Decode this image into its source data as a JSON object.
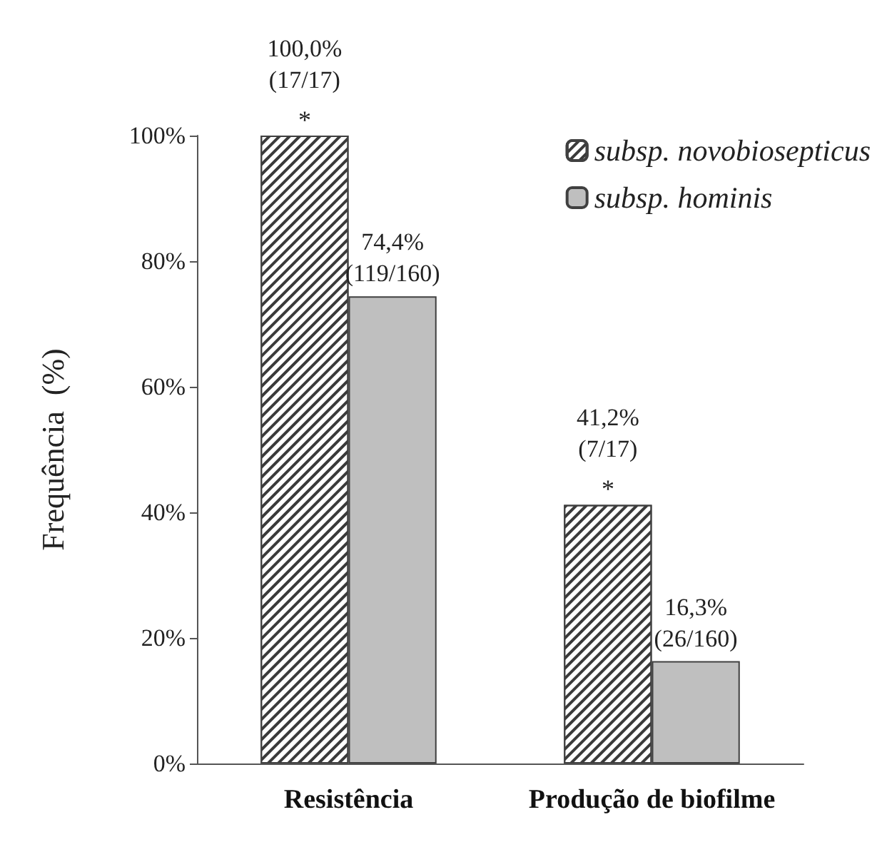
{
  "chart_data": {
    "type": "bar",
    "ylabel": "Frequência  (%)",
    "categories": [
      "Resistência",
      "Produção de biofilme"
    ],
    "series": [
      {
        "name": "subsp. novobiosepticus",
        "color": "#3a3a3a",
        "values": [
          100.0,
          41.2
        ],
        "value_labels": [
          "100,0%\n(17/17)",
          "41,2%\n(7/17)"
        ]
      },
      {
        "name": "subsp. hominis",
        "color": "#bfbfbf",
        "values": [
          74.4,
          16.3
        ],
        "value_labels": [
          "74,4%\n(119/160)",
          "16,3%\n(26/160)"
        ]
      }
    ],
    "annotations": [
      {
        "text": "*",
        "x": "Resistência",
        "y": 100.0
      },
      {
        "text": "*",
        "x": "Produção de biofilme",
        "y": 41.2
      }
    ],
    "ylim": [
      0,
      100
    ],
    "yticks": [
      {
        "value": 0,
        "label": "0%"
      },
      {
        "value": 20,
        "label": "20%"
      },
      {
        "value": 40,
        "label": "40%"
      },
      {
        "value": 60,
        "label": "60%"
      },
      {
        "value": 80,
        "label": "80%"
      },
      {
        "value": 100,
        "label": "100%"
      }
    ],
    "grid": false,
    "legend": "top right"
  }
}
